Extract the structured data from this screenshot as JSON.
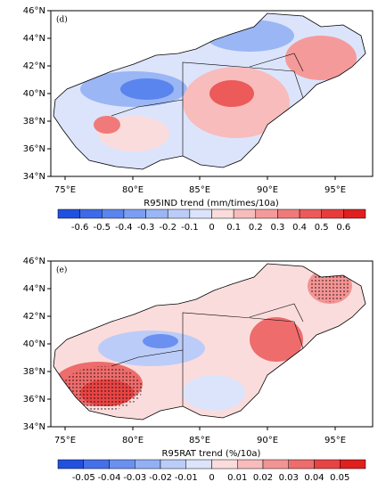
{
  "panels": [
    {
      "label": "(d)",
      "lat_labels": [
        "46°N",
        "44°N",
        "42°N",
        "40°N",
        "38°N",
        "36°N",
        "34°N"
      ],
      "lon_labels": [
        "75°E",
        "80°E",
        "85°E",
        "90°E",
        "95°E"
      ],
      "colorbar_title": "R95IND trend (mm/times/10a)",
      "colorbar_ticks": [
        -0.6,
        -0.5,
        -0.4,
        -0.3,
        -0.2,
        -0.1,
        0,
        0.1,
        0.2,
        0.3,
        0.4,
        0.5,
        0.6
      ],
      "colorbar_colors": [
        "#2050e0",
        "#3c6ae8",
        "#5a84ee",
        "#7a9ef2",
        "#9ab6f5",
        "#bcccf8",
        "#dce4fb",
        "#fbdcdc",
        "#f8bcbc",
        "#f59a9a",
        "#f07a7a",
        "#ec5a5a",
        "#e83c3c",
        "#e01f1f"
      ]
    },
    {
      "label": "(e)",
      "lat_labels": [
        "46°N",
        "44°N",
        "42°N",
        "40°N",
        "38°N",
        "36°N",
        "34°N"
      ],
      "lon_labels": [
        "75°E",
        "80°E",
        "85°E",
        "90°E",
        "95°E"
      ],
      "colorbar_title": "R95RAT trend (%/10a)",
      "colorbar_ticks": [
        -0.05,
        -0.04,
        -0.03,
        -0.02,
        -0.01,
        0,
        0.01,
        0.02,
        0.03,
        0.04,
        0.05
      ],
      "colorbar_colors": [
        "#2050e0",
        "#4470ea",
        "#6a90f0",
        "#92b0f4",
        "#bcccf8",
        "#dce4fb",
        "#fbdcdc",
        "#f8bcbc",
        "#f39494",
        "#ee6c6c",
        "#e84444",
        "#e01f1f"
      ]
    }
  ]
}
